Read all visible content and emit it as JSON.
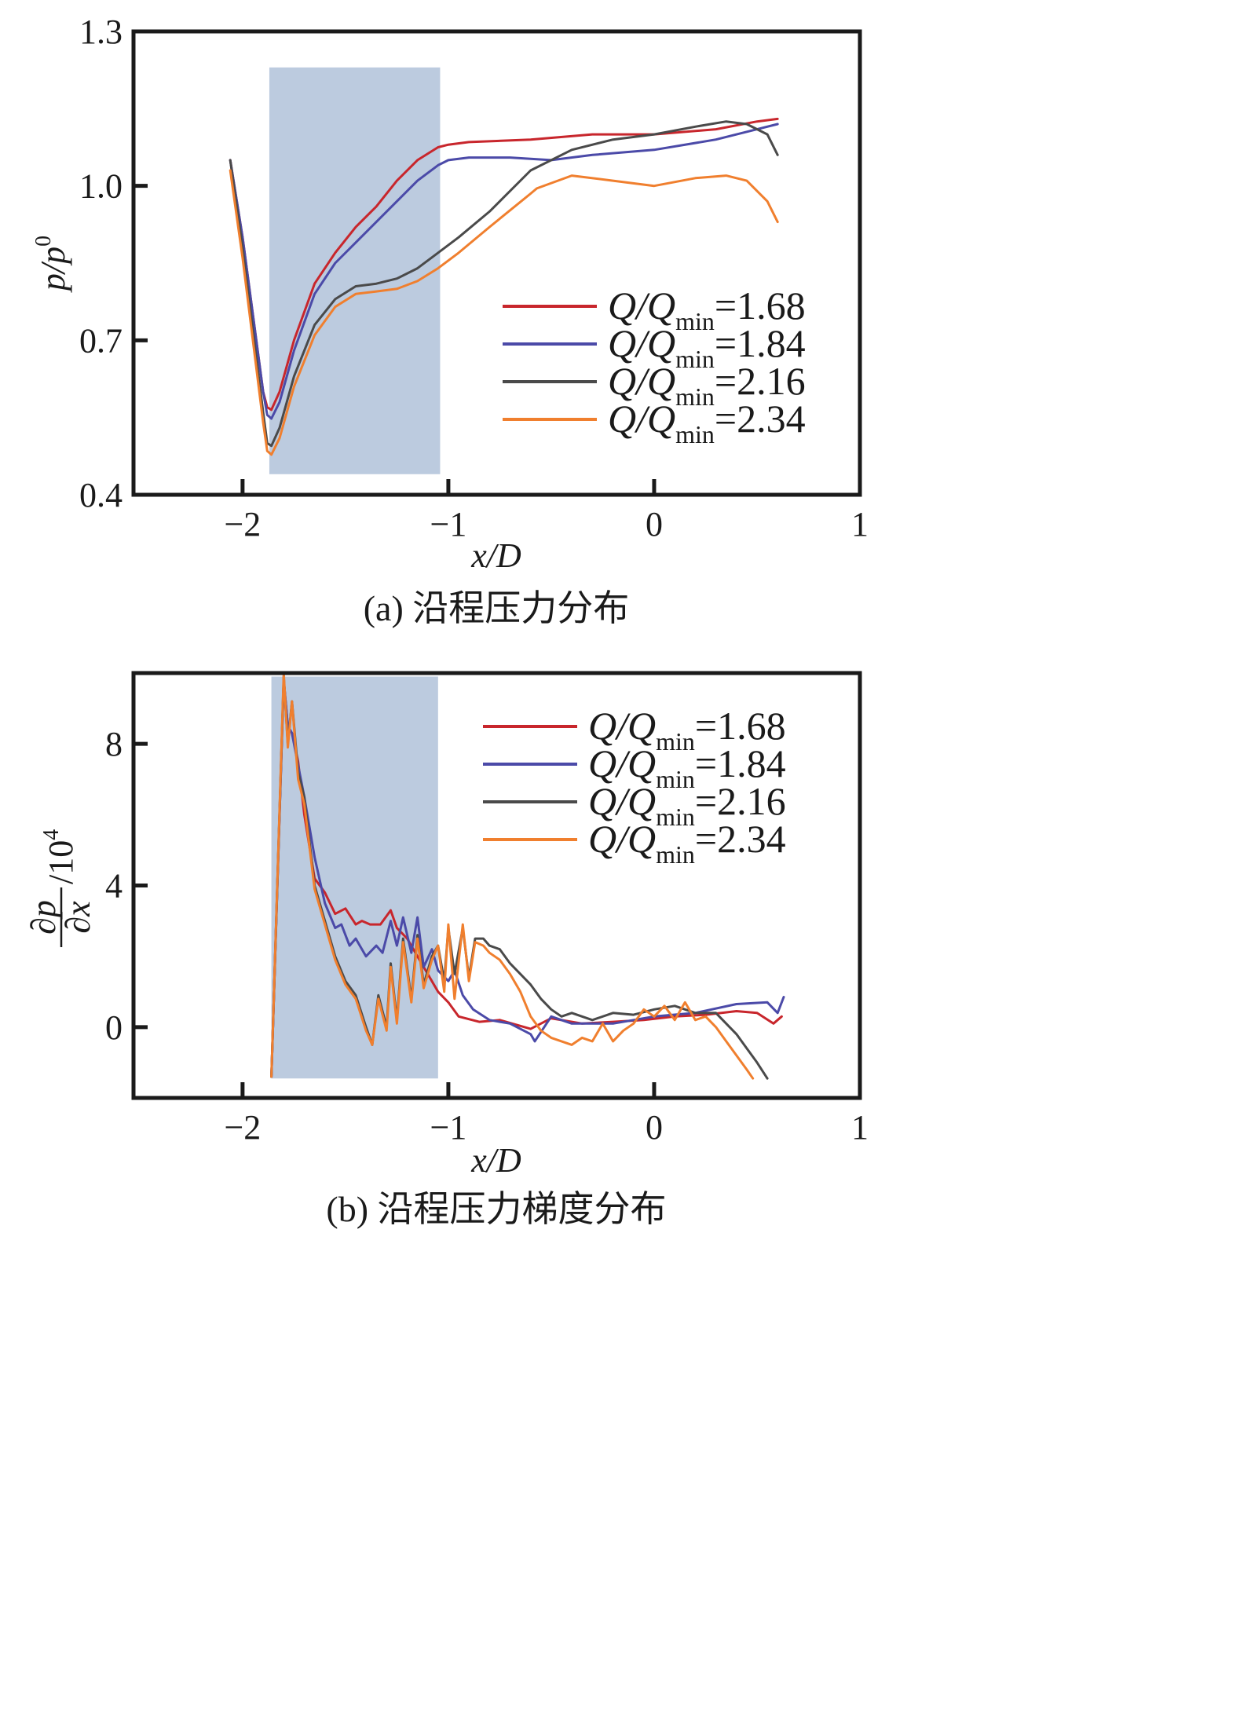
{
  "chart_data": [
    {
      "id": "a",
      "type": "line",
      "caption": "(a) 沿程压力分布",
      "xlabel": "x/D",
      "ylabel": "p/p⁰",
      "ylabel_main": "p/p",
      "ylabel_sup": "0",
      "xlim": [
        -2.53,
        1.0
      ],
      "ylim": [
        0.4,
        1.3
      ],
      "xticks": [
        -2,
        -1,
        0,
        1
      ],
      "xtick_labels": [
        "−2",
        "−1",
        "0",
        "1"
      ],
      "yticks": [
        0.4,
        0.7,
        1.0,
        1.3
      ],
      "ytick_labels": [
        "0.4",
        "0.7",
        "1.0",
        "1.3"
      ],
      "grid": false,
      "legend_position": "center-right",
      "shaded_region": {
        "x": [
          -1.87,
          -1.04
        ],
        "y": [
          0.44,
          1.23
        ],
        "color": "#bccbdf"
      },
      "series": [
        {
          "name": "Q/Qmin=1.68",
          "ratio": "1.68",
          "color": "#c8262c",
          "x": [
            -2.06,
            -2.0,
            -1.95,
            -1.9,
            -1.88,
            -1.86,
            -1.82,
            -1.75,
            -1.65,
            -1.55,
            -1.45,
            -1.35,
            -1.25,
            -1.15,
            -1.05,
            -1.0,
            -0.9,
            -0.6,
            -0.3,
            0.0,
            0.3,
            0.5,
            0.6
          ],
          "y": [
            1.05,
            0.9,
            0.75,
            0.6,
            0.57,
            0.565,
            0.6,
            0.7,
            0.81,
            0.87,
            0.92,
            0.96,
            1.01,
            1.05,
            1.075,
            1.08,
            1.085,
            1.09,
            1.1,
            1.1,
            1.11,
            1.125,
            1.13
          ]
        },
        {
          "name": "Q/Qmin=1.84",
          "ratio": "1.84",
          "color": "#4b4aa8",
          "x": [
            -2.06,
            -2.0,
            -1.95,
            -1.9,
            -1.88,
            -1.86,
            -1.82,
            -1.75,
            -1.65,
            -1.55,
            -1.45,
            -1.35,
            -1.25,
            -1.15,
            -1.05,
            -1.0,
            -0.9,
            -0.7,
            -0.5,
            -0.3,
            0.0,
            0.3,
            0.5,
            0.6
          ],
          "y": [
            1.05,
            0.9,
            0.75,
            0.6,
            0.555,
            0.548,
            0.58,
            0.68,
            0.79,
            0.85,
            0.89,
            0.93,
            0.97,
            1.01,
            1.04,
            1.05,
            1.055,
            1.055,
            1.05,
            1.06,
            1.07,
            1.09,
            1.11,
            1.12
          ]
        },
        {
          "name": "Q/Qmin=2.16",
          "ratio": "2.16",
          "color": "#4a4a4a",
          "x": [
            -2.06,
            -2.0,
            -1.95,
            -1.9,
            -1.88,
            -1.86,
            -1.82,
            -1.75,
            -1.65,
            -1.55,
            -1.45,
            -1.35,
            -1.25,
            -1.15,
            -1.05,
            -0.95,
            -0.8,
            -0.6,
            -0.4,
            -0.2,
            0.0,
            0.2,
            0.35,
            0.45,
            0.55,
            0.6
          ],
          "y": [
            1.05,
            0.88,
            0.72,
            0.56,
            0.5,
            0.495,
            0.53,
            0.63,
            0.73,
            0.78,
            0.805,
            0.81,
            0.82,
            0.84,
            0.87,
            0.9,
            0.95,
            1.03,
            1.07,
            1.09,
            1.1,
            1.115,
            1.125,
            1.12,
            1.1,
            1.06
          ]
        },
        {
          "name": "Q/Qmin=2.34",
          "ratio": "2.34",
          "color": "#f07f2e",
          "x": [
            -2.06,
            -2.0,
            -1.95,
            -1.9,
            -1.88,
            -1.86,
            -1.82,
            -1.75,
            -1.65,
            -1.55,
            -1.45,
            -1.35,
            -1.25,
            -1.15,
            -1.05,
            -0.95,
            -0.8,
            -0.6,
            -0.57,
            -0.4,
            -0.2,
            0.0,
            0.2,
            0.35,
            0.45,
            0.55,
            0.6
          ],
          "y": [
            1.03,
            0.86,
            0.7,
            0.54,
            0.485,
            0.478,
            0.51,
            0.61,
            0.71,
            0.765,
            0.79,
            0.795,
            0.8,
            0.815,
            0.84,
            0.87,
            0.92,
            0.985,
            0.995,
            1.02,
            1.01,
            1.0,
            1.015,
            1.02,
            1.01,
            0.97,
            0.93
          ]
        }
      ]
    },
    {
      "id": "b",
      "type": "line",
      "caption": "(b) 沿程压力梯度分布",
      "xlabel": "x/D",
      "ylabel": "∂p/∂x /10⁴",
      "ylabel_num": "∂p",
      "ylabel_den": "∂x",
      "ylabel_suffix": "/10",
      "ylabel_sup": "4",
      "xlim": [
        -2.53,
        1.0
      ],
      "ylim": [
        -2.0,
        10.0
      ],
      "xticks": [
        -2,
        -1,
        0,
        1
      ],
      "xtick_labels": [
        "−2",
        "−1",
        "0",
        "1"
      ],
      "yticks": [
        0,
        4,
        8
      ],
      "ytick_labels": [
        "0",
        "4",
        "8"
      ],
      "grid": false,
      "legend_position": "top-right",
      "shaded_region": {
        "x": [
          -1.86,
          -1.05
        ],
        "y": [
          -1.45,
          9.9
        ],
        "color": "#bccbdf"
      },
      "series": [
        {
          "name": "Q/Qmin=1.68",
          "ratio": "1.68",
          "color": "#c8262c",
          "x": [
            -1.86,
            -1.8,
            -1.78,
            -1.76,
            -1.73,
            -1.7,
            -1.65,
            -1.6,
            -1.55,
            -1.5,
            -1.45,
            -1.42,
            -1.38,
            -1.33,
            -1.28,
            -1.25,
            -1.2,
            -1.15,
            -1.1,
            -1.05,
            -1.0,
            -0.95,
            -0.85,
            -0.75,
            -0.6,
            -0.5,
            -0.35,
            -0.2,
            -0.05,
            0.1,
            0.25,
            0.4,
            0.5,
            0.58,
            0.62
          ],
          "y": [
            -1.4,
            9.8,
            8.5,
            8.3,
            7.5,
            6.0,
            4.2,
            3.8,
            3.2,
            3.35,
            2.9,
            3.0,
            2.9,
            2.9,
            3.3,
            2.8,
            2.5,
            2.0,
            1.5,
            1.0,
            0.7,
            0.3,
            0.15,
            0.2,
            -0.05,
            0.25,
            0.1,
            0.15,
            0.2,
            0.3,
            0.35,
            0.45,
            0.4,
            0.1,
            0.3
          ]
        },
        {
          "name": "Q/Qmin=1.84",
          "ratio": "1.84",
          "color": "#4b4aa8",
          "x": [
            -1.86,
            -1.8,
            -1.78,
            -1.76,
            -1.73,
            -1.7,
            -1.65,
            -1.6,
            -1.55,
            -1.52,
            -1.48,
            -1.45,
            -1.4,
            -1.35,
            -1.32,
            -1.28,
            -1.25,
            -1.22,
            -1.18,
            -1.15,
            -1.12,
            -1.08,
            -1.05,
            -1.0,
            -0.97,
            -0.93,
            -0.88,
            -0.8,
            -0.7,
            -0.6,
            -0.58,
            -0.5,
            -0.4,
            -0.2,
            0.0,
            0.2,
            0.4,
            0.55,
            0.6,
            0.63
          ],
          "y": [
            -1.4,
            9.8,
            8.5,
            8.3,
            7.4,
            6.5,
            4.8,
            3.5,
            2.8,
            2.9,
            2.3,
            2.5,
            2.0,
            2.3,
            2.1,
            3.0,
            2.3,
            3.1,
            2.1,
            3.1,
            1.7,
            2.2,
            1.6,
            1.3,
            1.6,
            0.9,
            0.5,
            0.2,
            0.1,
            -0.2,
            -0.4,
            0.3,
            0.1,
            0.1,
            0.3,
            0.4,
            0.65,
            0.7,
            0.4,
            0.85
          ]
        },
        {
          "name": "Q/Qmin=2.16",
          "ratio": "2.16",
          "color": "#4a4a4a",
          "x": [
            -1.86,
            -1.8,
            -1.78,
            -1.76,
            -1.73,
            -1.7,
            -1.65,
            -1.6,
            -1.55,
            -1.5,
            -1.45,
            -1.4,
            -1.37,
            -1.34,
            -1.3,
            -1.28,
            -1.25,
            -1.22,
            -1.18,
            -1.15,
            -1.12,
            -1.08,
            -1.05,
            -1.02,
            -1.0,
            -0.97,
            -0.93,
            -0.9,
            -0.87,
            -0.83,
            -0.8,
            -0.75,
            -0.7,
            -0.6,
            -0.55,
            -0.5,
            -0.45,
            -0.4,
            -0.3,
            -0.2,
            -0.1,
            0.0,
            0.1,
            0.2,
            0.3,
            0.4,
            0.45,
            0.5,
            0.55
          ],
          "y": [
            -1.4,
            9.9,
            8.0,
            9.2,
            7.2,
            6.5,
            4.0,
            3.0,
            2.0,
            1.3,
            0.9,
            0.0,
            -0.5,
            0.9,
            0.0,
            1.8,
            0.2,
            2.5,
            0.8,
            2.6,
            1.2,
            2.0,
            2.3,
            1.3,
            2.8,
            1.5,
            2.8,
            1.4,
            2.5,
            2.5,
            2.3,
            2.2,
            1.8,
            1.2,
            0.8,
            0.5,
            0.3,
            0.4,
            0.2,
            0.4,
            0.35,
            0.5,
            0.6,
            0.4,
            0.4,
            -0.2,
            -0.6,
            -1.0,
            -1.45
          ]
        },
        {
          "name": "Q/Qmin=2.34",
          "ratio": "2.34",
          "color": "#f07f2e",
          "x": [
            -1.86,
            -1.8,
            -1.78,
            -1.76,
            -1.73,
            -1.7,
            -1.65,
            -1.6,
            -1.55,
            -1.5,
            -1.45,
            -1.4,
            -1.37,
            -1.34,
            -1.3,
            -1.28,
            -1.25,
            -1.22,
            -1.18,
            -1.15,
            -1.12,
            -1.08,
            -1.05,
            -1.02,
            -1.0,
            -0.97,
            -0.93,
            -0.9,
            -0.87,
            -0.83,
            -0.8,
            -0.75,
            -0.7,
            -0.65,
            -0.6,
            -0.55,
            -0.5,
            -0.4,
            -0.35,
            -0.3,
            -0.25,
            -0.2,
            -0.15,
            -0.1,
            -0.05,
            0.0,
            0.05,
            0.1,
            0.15,
            0.2,
            0.25,
            0.3,
            0.35,
            0.4,
            0.45,
            0.48
          ],
          "y": [
            -1.4,
            10.0,
            7.9,
            9.2,
            7.0,
            6.3,
            3.9,
            2.9,
            1.9,
            1.2,
            0.8,
            -0.1,
            -0.5,
            0.8,
            -0.1,
            1.7,
            0.1,
            2.4,
            0.7,
            2.5,
            1.1,
            1.9,
            2.3,
            1.0,
            2.9,
            0.8,
            2.9,
            1.3,
            2.4,
            2.3,
            2.1,
            1.9,
            1.5,
            1.0,
            0.3,
            -0.1,
            -0.3,
            -0.5,
            -0.3,
            -0.4,
            0.1,
            -0.4,
            -0.1,
            0.1,
            0.5,
            0.3,
            0.6,
            0.2,
            0.7,
            0.2,
            0.3,
            0.0,
            -0.4,
            -0.8,
            -1.2,
            -1.45
          ]
        }
      ]
    }
  ]
}
